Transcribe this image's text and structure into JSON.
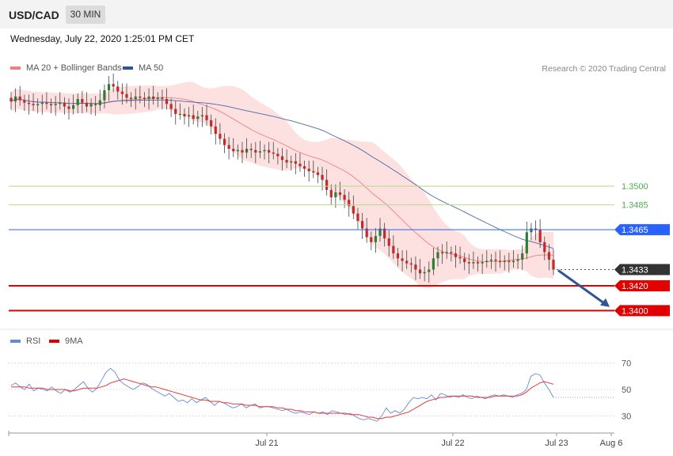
{
  "header": {
    "symbol": "USD/CAD",
    "timeframe": "30 MIN"
  },
  "datetime": "Wednesday, July 22, 2020 1:25:01 PM CET",
  "legend": {
    "ma20_label": "MA 20 + Bollinger Bands",
    "ma50_label": "MA 50",
    "rsi_label": "RSI",
    "ma9_label": "9MA"
  },
  "copyright": "Research © 2020 Trading Central",
  "colors": {
    "bullish": "#2e7d32",
    "bearish": "#c62828",
    "bollinger_fill": "#fde0e0",
    "ma20": "#f08080",
    "ma50": "#4a6aa8",
    "rsi": "#6688dd",
    "rsi_ma": "#e53935",
    "resistance": "#b5d98a",
    "pivot": "#2962ff",
    "support": "#e00000",
    "last_price": "#333333"
  },
  "chart_data": [
    {
      "type": "candlestick",
      "title": "",
      "price_axis": {
        "min": 1.3385,
        "max": 1.3605
      },
      "levels": [
        {
          "value": 1.35,
          "label": "1.3500",
          "kind": "resistance"
        },
        {
          "value": 1.3485,
          "label": "1.3485",
          "kind": "resistance"
        },
        {
          "value": 1.3465,
          "label": "1.3465",
          "kind": "pivot"
        },
        {
          "value": 1.3433,
          "label": "1.3433",
          "kind": "last_price"
        },
        {
          "value": 1.342,
          "label": "1.3420",
          "kind": "support"
        },
        {
          "value": 1.34,
          "label": "1.3400",
          "kind": "support"
        }
      ],
      "x_tick_labels": [
        "Jul 21",
        "Jul 22",
        "Jul 23",
        "Aug 6"
      ],
      "candles_close": [
        1.3568,
        1.3572,
        1.3569,
        1.3567,
        1.3566,
        1.3565,
        1.3566,
        1.3567,
        1.3566,
        1.3565,
        1.3566,
        1.3567,
        1.3564,
        1.3562,
        1.3565,
        1.357,
        1.3567,
        1.3564,
        1.3566,
        1.3565,
        1.3569,
        1.3577,
        1.3582,
        1.358,
        1.3576,
        1.3574,
        1.3571,
        1.357,
        1.3572,
        1.3571,
        1.357,
        1.3572,
        1.357,
        1.3571,
        1.357,
        1.3566,
        1.3562,
        1.3558,
        1.3558,
        1.3556,
        1.3557,
        1.3554,
        1.3556,
        1.3557,
        1.3553,
        1.3548,
        1.3542,
        1.3538,
        1.3533,
        1.353,
        1.3528,
        1.3529,
        1.3527,
        1.353,
        1.3529,
        1.3527,
        1.3528,
        1.3529,
        1.3527,
        1.3526,
        1.3524,
        1.3521,
        1.3519,
        1.352,
        1.3518,
        1.3516,
        1.3514,
        1.3512,
        1.3511,
        1.3509,
        1.3505,
        1.3497,
        1.3491,
        1.3495,
        1.3493,
        1.3489,
        1.3484,
        1.3478,
        1.3472,
        1.3466,
        1.3459,
        1.3455,
        1.346,
        1.3466,
        1.3458,
        1.3452,
        1.3446,
        1.3442,
        1.344,
        1.3438,
        1.3437,
        1.3433,
        1.343,
        1.3431,
        1.3433,
        1.3442,
        1.3447,
        1.3446,
        1.3447,
        1.3446,
        1.3443,
        1.3442,
        1.3439,
        1.3438,
        1.3439,
        1.3438,
        1.3439,
        1.344,
        1.3441,
        1.344,
        1.3439,
        1.344,
        1.3439,
        1.344,
        1.3441,
        1.3446,
        1.3463,
        1.3466,
        1.3465,
        1.3455,
        1.3447,
        1.3441,
        1.3433
      ]
    },
    {
      "type": "line",
      "title": "RSI",
      "ylim": [
        20,
        80
      ],
      "y_ticks": [
        70,
        50,
        30
      ],
      "series": [
        {
          "name": "RSI",
          "values": [
            53,
            55,
            52,
            50,
            54,
            49,
            51,
            50,
            49,
            52,
            49,
            47,
            50,
            48,
            50,
            53,
            56,
            51,
            48,
            51,
            57,
            63,
            66,
            63,
            57,
            54,
            52,
            50,
            52,
            55,
            54,
            51,
            49,
            47,
            45,
            47,
            44,
            41,
            42,
            40,
            43,
            40,
            42,
            44,
            41,
            38,
            41,
            40,
            38,
            36,
            37,
            39,
            36,
            38,
            39,
            36,
            37,
            37,
            36,
            35,
            34,
            35,
            33,
            32,
            33,
            32,
            31,
            33,
            32,
            33,
            31,
            34,
            33,
            32,
            31,
            32,
            30,
            28,
            27,
            28,
            27,
            26,
            30,
            36,
            32,
            34,
            32,
            35,
            40,
            44,
            43,
            44,
            43,
            46,
            42,
            47,
            46,
            44,
            45,
            44,
            46,
            44,
            43,
            45,
            44,
            43,
            45,
            46,
            45,
            46,
            45,
            44,
            46,
            47,
            50,
            60,
            62,
            61,
            55,
            50,
            44
          ]
        },
        {
          "name": "9MA",
          "values": [
            52,
            52,
            52,
            52,
            51,
            51,
            51,
            51,
            50,
            50,
            50,
            50,
            50,
            49,
            49,
            50,
            51,
            51,
            51,
            51,
            52,
            53,
            55,
            56,
            57,
            58,
            57,
            56,
            55,
            54,
            53,
            52,
            52,
            51,
            50,
            49,
            48,
            47,
            46,
            45,
            44,
            43,
            42,
            42,
            41,
            41,
            41,
            40,
            40,
            39,
            39,
            39,
            38,
            38,
            38,
            37,
            37,
            37,
            37,
            36,
            36,
            35,
            35,
            34,
            34,
            33,
            33,
            33,
            32,
            32,
            32,
            32,
            32,
            32,
            32,
            31,
            31,
            31,
            30,
            29,
            29,
            28,
            28,
            29,
            29,
            30,
            31,
            32,
            33,
            35,
            37,
            39,
            41,
            42,
            43,
            44,
            44,
            45,
            45,
            45,
            45,
            45,
            45,
            44,
            44,
            44,
            44,
            45,
            45,
            45,
            45,
            45,
            45,
            46,
            48,
            51,
            53,
            55,
            56,
            55,
            54
          ]
        }
      ]
    }
  ]
}
